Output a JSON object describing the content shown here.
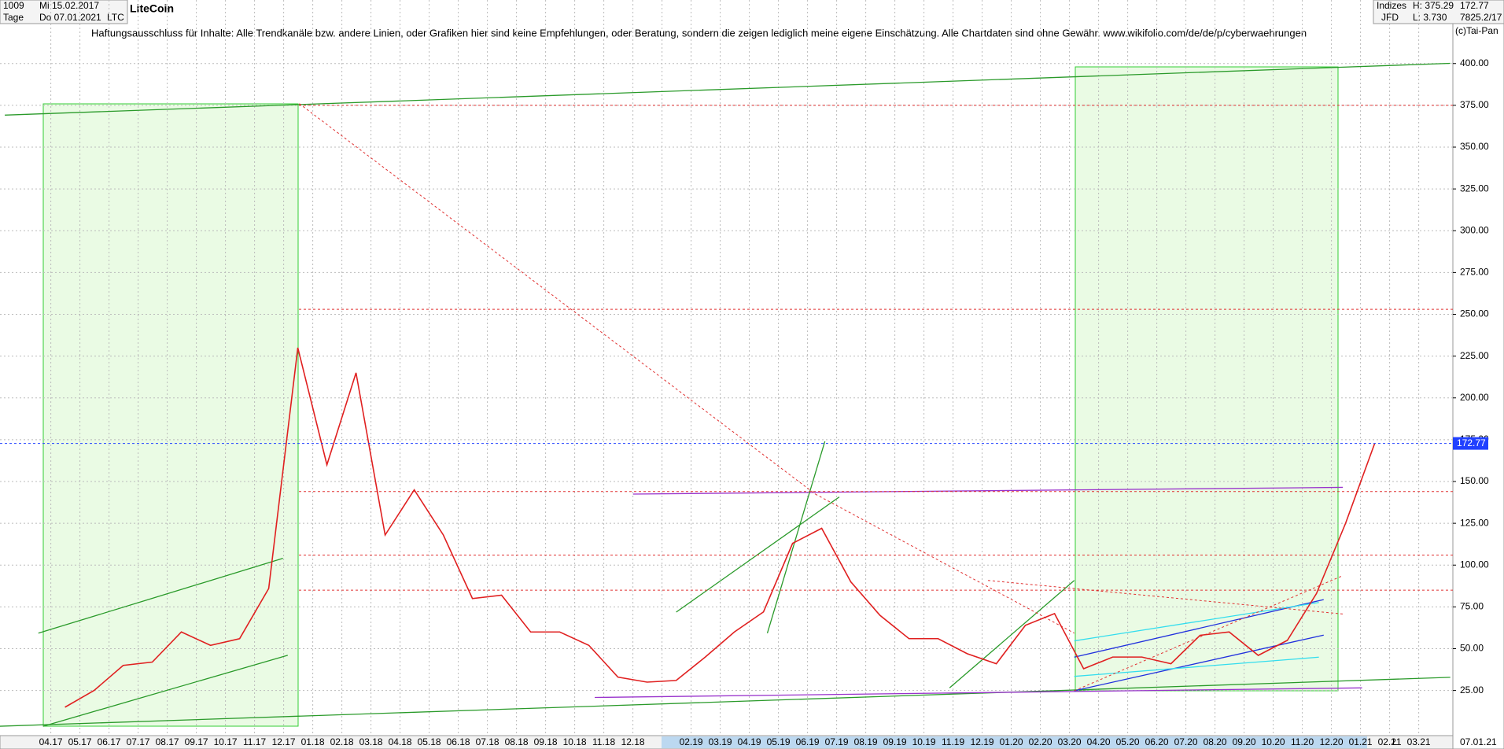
{
  "header": {
    "bars": "1009",
    "start_date": "Mi 15.02.2017",
    "period": "Tage",
    "end_date": "Do 07.01.2021",
    "symbol": "LTC",
    "disclaimer": "Haftungsausschluss für Inhalte: Alle Trendkanäle bzw. andere Linien, oder Grafiken hier sind keine Empfehlungen, oder Beratung, sondern die zeigen lediglich meine eigene Einschätzung. Alle Chartdaten sind ohne Gewähr.  www.wikifolio.com/de/de/p/cyberwaehrungen",
    "group": "Indizes",
    "broker": "JFD",
    "high": "H: 375.29",
    "low": "L: 3.730",
    "counter": "7825.2/17",
    "copyright": "(c)Tai-Pan",
    "axis_mode": "L",
    "axis_date": "07.01.21"
  },
  "chart_data": {
    "type": "line",
    "title": "LiteCoin",
    "color": "#e02020",
    "categories": [
      "04.17",
      "05.17",
      "06.17",
      "07.17",
      "08.17",
      "09.17",
      "10.17",
      "11.17",
      "12.17",
      "01.18",
      "02.18",
      "03.18",
      "04.18",
      "05.18",
      "06.18",
      "07.18",
      "08.18",
      "09.18",
      "10.18",
      "11.18",
      "12.18",
      null,
      "02.19",
      "03.19",
      "04.19",
      "05.19",
      "06.19",
      "07.19",
      "08.19",
      "09.19",
      "10.19",
      "11.19",
      "12.19",
      "01.20",
      "02.20",
      "03.20",
      "04.20",
      "05.20",
      "06.20",
      "07.20",
      "08.20",
      "09.20",
      "10.20",
      "11.20",
      "12.20",
      "01.21",
      "02.21",
      "03.21"
    ],
    "values": [
      15,
      25,
      40,
      42,
      60,
      52,
      56,
      86,
      230,
      160,
      215,
      118,
      145,
      118,
      80,
      82,
      60,
      60,
      52,
      33,
      30,
      31,
      45,
      60,
      72,
      113,
      122,
      90,
      70,
      56,
      56,
      47,
      41,
      64,
      71,
      38,
      45,
      45,
      41,
      58,
      60,
      46,
      55,
      83,
      125,
      172.77,
      null,
      null
    ],
    "ylim": [
      -2,
      438
    ],
    "yticks": [
      {
        "value": 25,
        "label": "25.00"
      },
      {
        "value": 50,
        "label": "50.00"
      },
      {
        "value": 75,
        "label": "75.00"
      },
      {
        "value": 100,
        "label": "100.00"
      },
      {
        "value": 125,
        "label": "125.00"
      },
      {
        "value": 150,
        "label": "150.00"
      },
      {
        "value": 175,
        "label": "175.00"
      },
      {
        "value": 200,
        "label": "200.00"
      },
      {
        "value": 225,
        "label": "225.00"
      },
      {
        "value": 250,
        "label": "250.00"
      },
      {
        "value": 275,
        "label": "275.00"
      },
      {
        "value": 300,
        "label": "300.00"
      },
      {
        "value": 325,
        "label": "325.00"
      },
      {
        "value": 350,
        "label": "350.00"
      },
      {
        "value": 375,
        "label": "375.00"
      },
      {
        "value": 400,
        "label": "400.00"
      }
    ],
    "grid": true,
    "hlines": [
      375,
      253,
      144,
      106,
      85
    ],
    "hline_color": "#e03030",
    "last_color": "#2040ff"
  }
}
